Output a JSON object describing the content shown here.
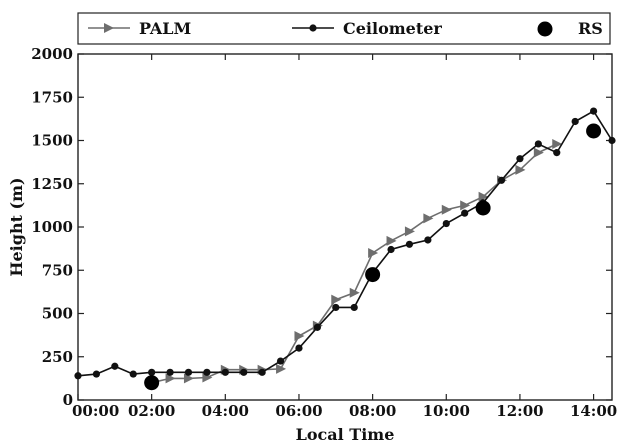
{
  "chart_data": {
    "type": "line",
    "title": "",
    "xlabel": "Local Time",
    "ylabel": "Height (m)",
    "xlim": [
      0,
      14.5
    ],
    "ylim": [
      0,
      2000
    ],
    "grid": false,
    "legend_position": "top",
    "x_ticks": [
      {
        "value": 0,
        "label": "00:00"
      },
      {
        "value": 2,
        "label": "02:00"
      },
      {
        "value": 4,
        "label": "04:00"
      },
      {
        "value": 6,
        "label": "06:00"
      },
      {
        "value": 8,
        "label": "08:00"
      },
      {
        "value": 10,
        "label": "10:00"
      },
      {
        "value": 12,
        "label": "12:00"
      },
      {
        "value": 14,
        "label": "14:00"
      }
    ],
    "y_ticks": [
      {
        "value": 0,
        "label": "0"
      },
      {
        "value": 250,
        "label": "250"
      },
      {
        "value": 500,
        "label": "500"
      },
      {
        "value": 750,
        "label": "750"
      },
      {
        "value": 1000,
        "label": "1000"
      },
      {
        "value": 1250,
        "label": "1250"
      },
      {
        "value": 1500,
        "label": "1500"
      },
      {
        "value": 1750,
        "label": "1750"
      },
      {
        "value": 2000,
        "label": "2000"
      }
    ],
    "series": [
      {
        "name": "PALM",
        "marker": "triangle-right",
        "color": "#6e6e6e",
        "x": [
          2.0,
          2.5,
          3.0,
          3.5,
          4.0,
          4.5,
          5.0,
          5.5,
          6.0,
          6.5,
          7.0,
          7.5,
          8.0,
          8.5,
          9.0,
          9.5,
          10.0,
          10.5,
          11.0,
          11.5,
          12.0,
          12.5,
          13.0
        ],
        "y": [
          100,
          125,
          125,
          130,
          175,
          175,
          175,
          180,
          370,
          430,
          580,
          620,
          850,
          920,
          975,
          1050,
          1100,
          1125,
          1175,
          1270,
          1330,
          1430,
          1480
        ]
      },
      {
        "name": "Ceilometer",
        "marker": "circle",
        "color": "#111111",
        "x": [
          0.0,
          0.5,
          1.0,
          1.5,
          2.0,
          2.5,
          3.0,
          3.5,
          4.0,
          4.5,
          5.0,
          5.5,
          6.0,
          6.5,
          7.0,
          7.5,
          8.0,
          8.5,
          9.0,
          9.5,
          10.0,
          10.5,
          11.0,
          11.5,
          12.0,
          12.5,
          13.0,
          13.5,
          14.0,
          14.5
        ],
        "y": [
          140,
          150,
          195,
          150,
          160,
          160,
          160,
          160,
          160,
          160,
          160,
          225,
          300,
          420,
          535,
          535,
          735,
          870,
          900,
          925,
          1020,
          1080,
          1140,
          1270,
          1395,
          1480,
          1430,
          1610,
          1670,
          1500
        ]
      },
      {
        "name": "RS",
        "marker": "large-circle",
        "color": "#000000",
        "x": [
          2.0,
          8.0,
          11.0,
          14.0
        ],
        "y": [
          100,
          725,
          1110,
          1555
        ]
      }
    ]
  }
}
